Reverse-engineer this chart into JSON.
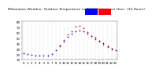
{
  "title": "Milwaukee Weather  Outdoor Temperature vs THSW Index  per Hour  (24 Hours)",
  "legend_temp_color": "#0000cc",
  "legend_thsw_color": "#cc0000",
  "bg_color": "#ffffff",
  "grid_color": "#aaaaaa",
  "hours": [
    0,
    1,
    2,
    3,
    4,
    5,
    6,
    7,
    8,
    9,
    10,
    11,
    12,
    13,
    14,
    15,
    16,
    17,
    18,
    19,
    20,
    21,
    22,
    23
  ],
  "temp_blue": [
    22,
    20,
    19,
    18,
    17,
    17,
    18,
    20,
    28,
    36,
    44,
    52,
    58,
    62,
    64,
    62,
    58,
    54,
    50,
    45,
    40,
    35,
    30,
    27
  ],
  "thsw_red": [
    null,
    null,
    null,
    null,
    null,
    null,
    null,
    null,
    null,
    34,
    46,
    56,
    62,
    70,
    72,
    68,
    60,
    54,
    48,
    43,
    38,
    33,
    29,
    null
  ],
  "ylim": [
    10,
    80
  ],
  "yticks": [
    10,
    20,
    30,
    40,
    50,
    60,
    70,
    80
  ],
  "title_fontsize": 3.2,
  "tick_fontsize": 2.8,
  "dot_size": 1.5,
  "legend_box_color_blue": "#0000ff",
  "legend_box_color_red": "#ff0000"
}
